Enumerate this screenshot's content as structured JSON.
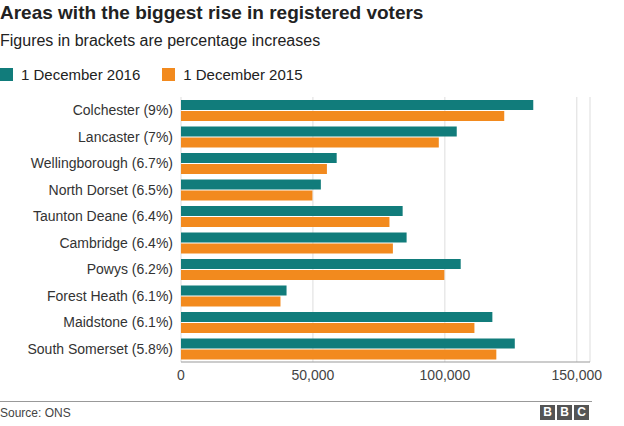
{
  "chart_data": {
    "type": "bar",
    "title": "Areas with the biggest rise in registered voters",
    "subtitle": "Figures in brackets are percentage increases",
    "orientation": "horizontal",
    "grid": true,
    "legend": "top",
    "categories": [
      "Colchester (9%)",
      "Lancaster (7%)",
      "Wellingborough (6.7%)",
      "North Dorset (6.5%)",
      "Taunton Deane (6.4%)",
      "Cambridge (6.4%)",
      "Powys (6.2%)",
      "Forest Heath (6.1%)",
      "Maidstone (6.1%)",
      "South Somerset (5.8%)"
    ],
    "series": [
      {
        "name": "1 December 2016",
        "color": "#117c7b",
        "values": [
          133500,
          104500,
          59000,
          53000,
          84000,
          85500,
          106000,
          40000,
          118000,
          126500
        ]
      },
      {
        "name": "1 December 2015",
        "color": "#f28a1e",
        "values": [
          122500,
          97700,
          55300,
          49800,
          79000,
          80300,
          99800,
          37700,
          111200,
          119500
        ]
      }
    ],
    "xlim": [
      0,
      155000
    ],
    "xticks": [
      0,
      {
        "value": 50000,
        "label": "50,000"
      },
      {
        "value": 100000,
        "label": "100,000"
      },
      {
        "value": 150000,
        "label": "150,000"
      }
    ],
    "source": "Source: ONS",
    "logo": "BBC"
  }
}
